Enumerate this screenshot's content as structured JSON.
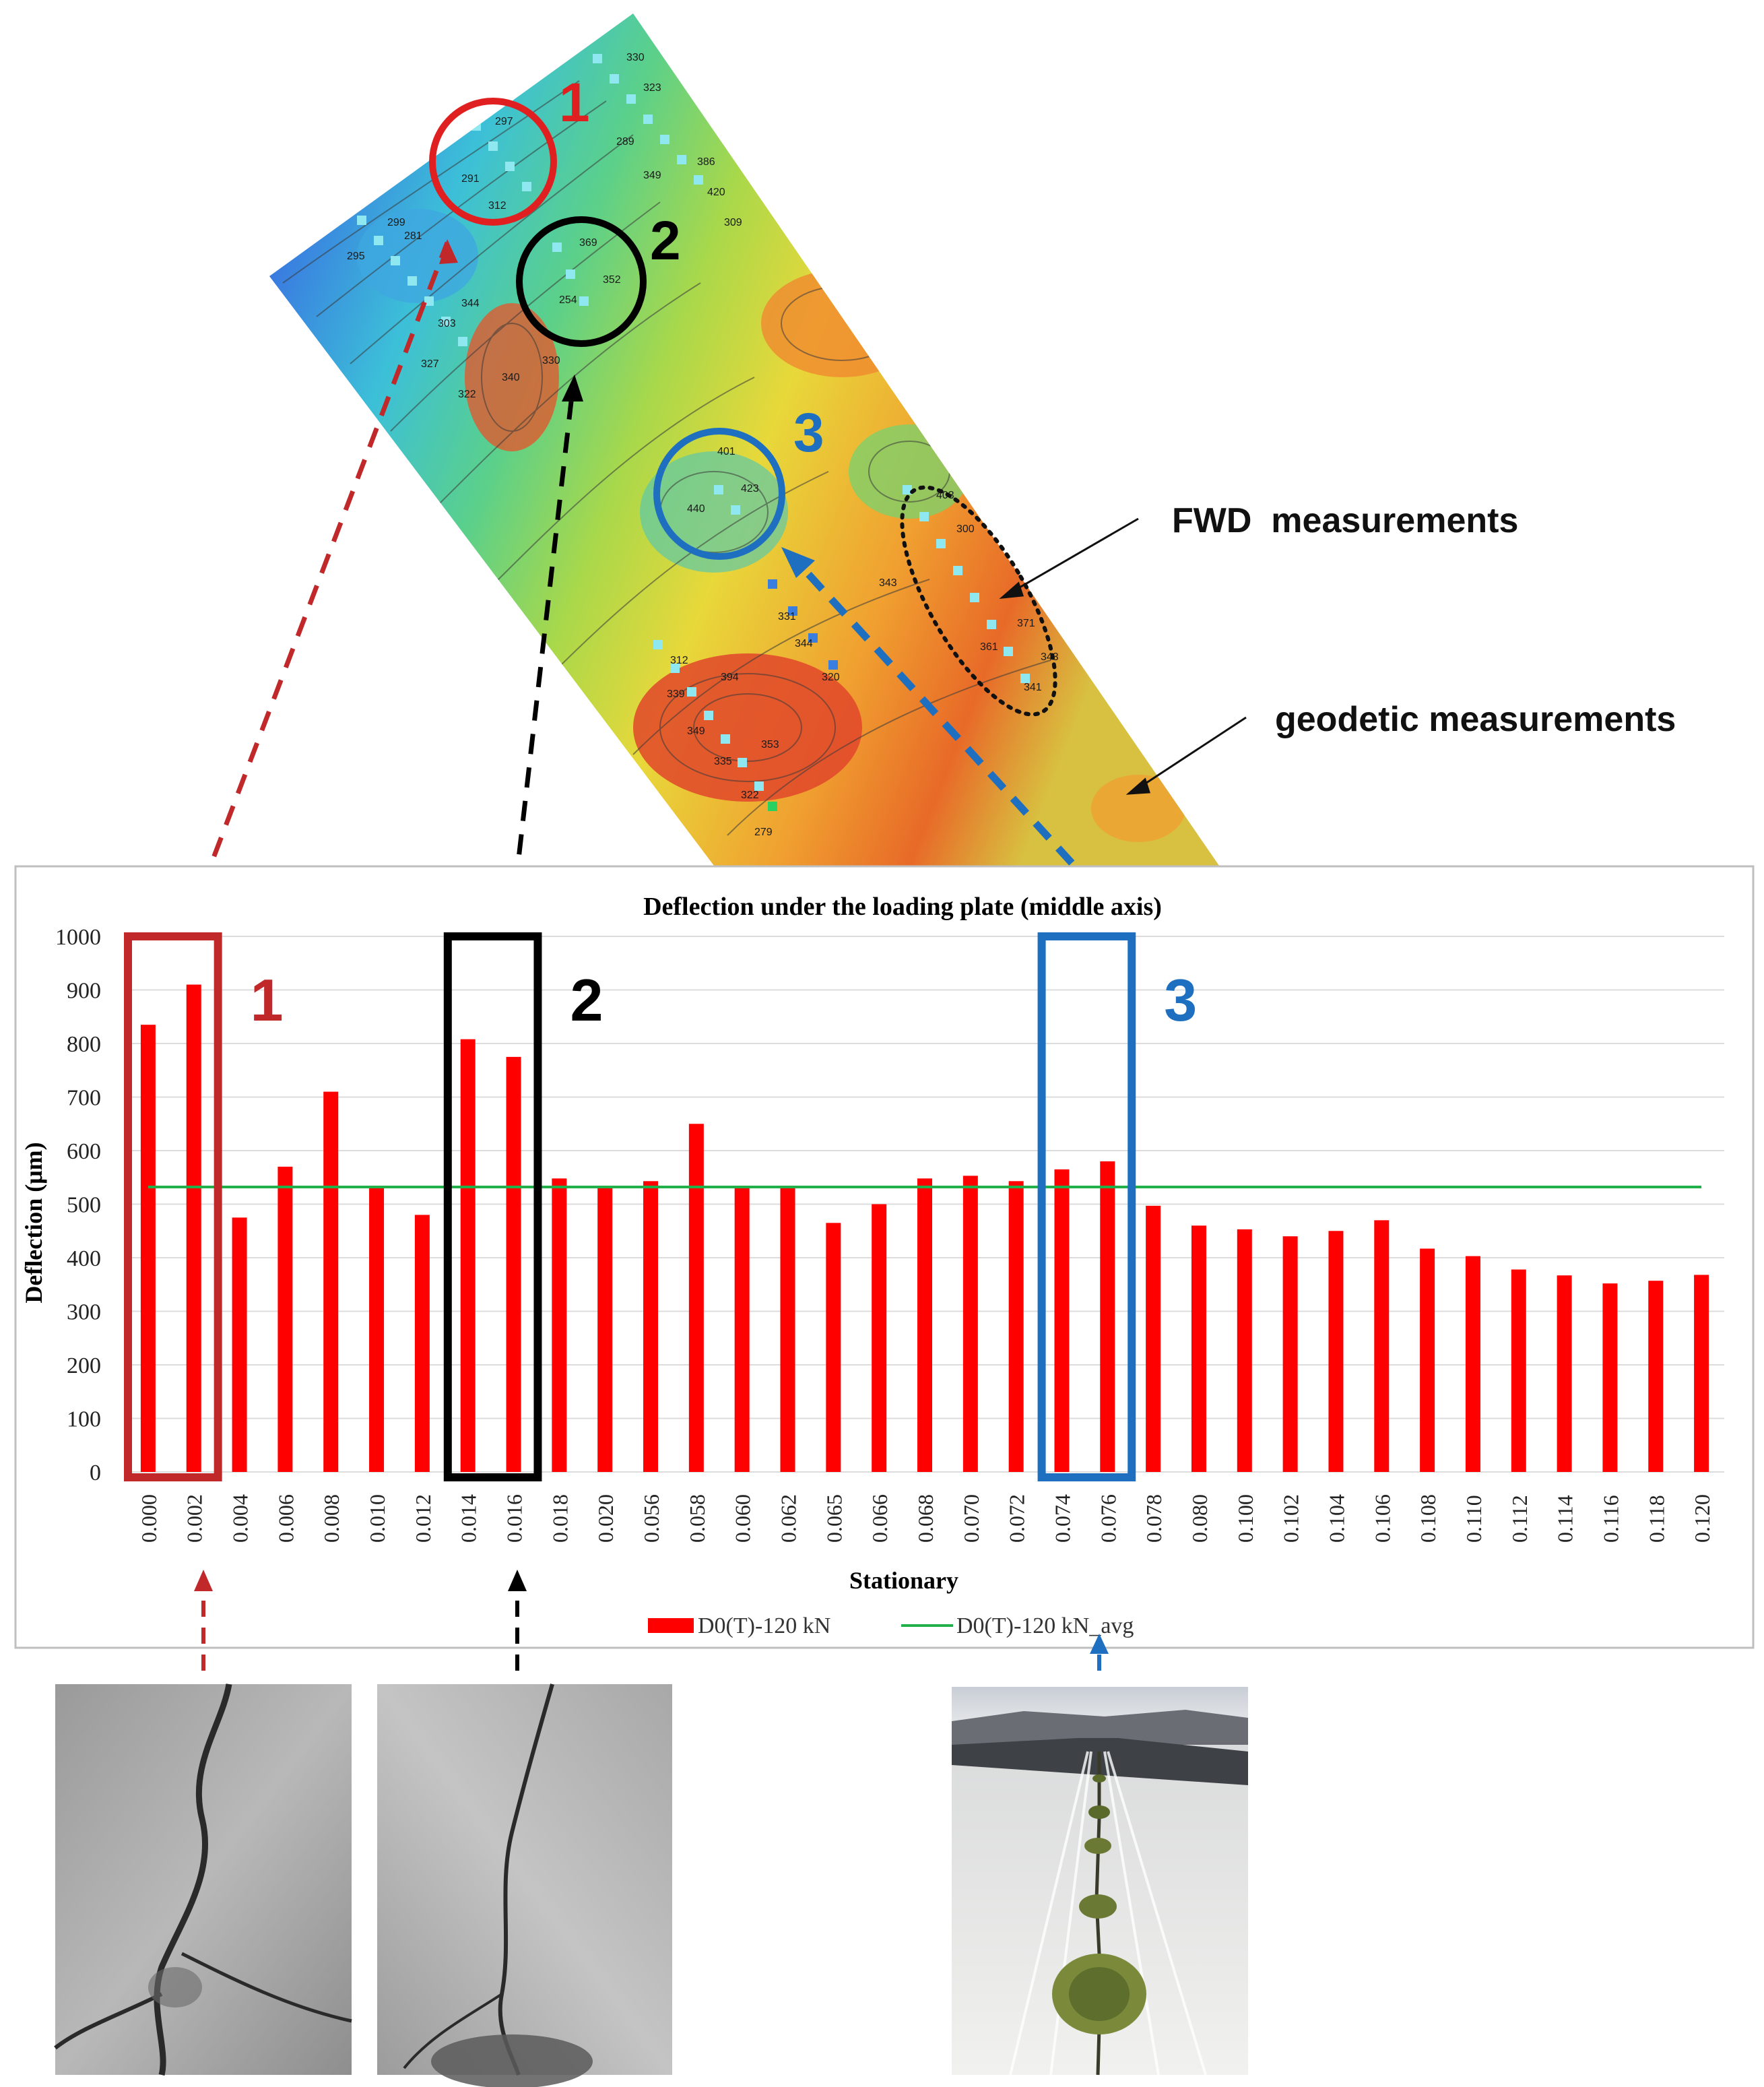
{
  "map": {
    "callouts": [
      {
        "text": "1",
        "color": "#e02020"
      },
      {
        "text": "2",
        "color": "#000000"
      },
      {
        "text": "3",
        "color": "#1f6fc0"
      }
    ],
    "annotations": {
      "fwd": "FWD  measurements",
      "geodetic": "geodetic measurements"
    },
    "contour_labels": [
      "330",
      "323",
      "297",
      "291",
      "312",
      "289",
      "349",
      "386",
      "420",
      "309",
      "299",
      "295",
      "281",
      "369",
      "352",
      "254",
      "344",
      "303",
      "327",
      "322",
      "340",
      "330",
      "401",
      "440",
      "423",
      "300",
      "403",
      "371",
      "343",
      "341",
      "361",
      "343",
      "331",
      "344",
      "320",
      "312",
      "339",
      "394",
      "353",
      "349",
      "335",
      "322",
      "279"
    ]
  },
  "chart_data": {
    "type": "bar",
    "title": "Deflection under the loading plate (middle axis)",
    "xlabel": "Stationary",
    "ylabel": "Deflection (μm)",
    "ylim": [
      0,
      1000
    ],
    "yticks": [
      0,
      100,
      200,
      300,
      400,
      500,
      600,
      700,
      800,
      900,
      1000
    ],
    "grid": true,
    "legend_position": "bottom",
    "categories": [
      "0.000",
      "0.002",
      "0.004",
      "0.006",
      "0.008",
      "0.010",
      "0.012",
      "0.014",
      "0.016",
      "0.018",
      "0.020",
      "0.056",
      "0.058",
      "0.060",
      "0.062",
      "0.065",
      "0.066",
      "0.068",
      "0.070",
      "0.072",
      "0.074",
      "0.076",
      "0.078",
      "0.080",
      "0.100",
      "0.102",
      "0.104",
      "0.106",
      "0.108",
      "0.110",
      "0.112",
      "0.114",
      "0.116",
      "0.118",
      "0.120"
    ],
    "series": [
      {
        "name": "D0(T)-120 kN",
        "type": "bar",
        "color": "#ff0000",
        "values": [
          835,
          910,
          475,
          570,
          710,
          530,
          480,
          808,
          775,
          548,
          530,
          543,
          650,
          530,
          530,
          465,
          500,
          548,
          553,
          543,
          565,
          580,
          497,
          460,
          453,
          440,
          450,
          470,
          417,
          403,
          378,
          367,
          352,
          357,
          368
        ]
      },
      {
        "name": "D0(T)-120 kN_avg",
        "type": "line",
        "color": "#22b04a",
        "values": [
          532,
          532,
          532,
          532,
          532,
          532,
          532,
          532,
          532,
          532,
          532,
          532,
          532,
          532,
          532,
          532,
          532,
          532,
          532,
          532,
          532,
          532,
          532,
          532,
          532,
          532,
          532,
          532,
          532,
          532,
          532,
          532,
          532,
          532,
          532
        ]
      }
    ],
    "highlight_boxes": [
      {
        "label": "1",
        "color": "#c0282a",
        "categories": [
          "0.000",
          "0.002"
        ]
      },
      {
        "label": "2",
        "color": "#000000",
        "categories": [
          "0.014",
          "0.016"
        ]
      },
      {
        "label": "3",
        "color": "#1f6fc0",
        "categories": [
          "0.074",
          "0.076"
        ]
      }
    ]
  },
  "photos": [
    {
      "name": "crack-photo-1",
      "depicts": "asphalt-crack",
      "arrow_color": "#c0282a"
    },
    {
      "name": "crack-photo-2",
      "depicts": "asphalt-crack",
      "arrow_color": "#000000"
    },
    {
      "name": "runway-photo",
      "depicts": "runway-with-vegetation-in-joint",
      "arrow_color": "#1f6fc0"
    }
  ]
}
